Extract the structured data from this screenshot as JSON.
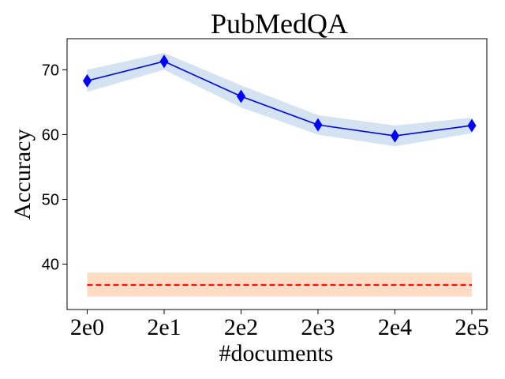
{
  "chart_data": {
    "type": "line",
    "title": "PubMedQA",
    "xlabel": "#documents",
    "ylabel": "Accuracy",
    "categories": [
      "2e0",
      "2e1",
      "2e2",
      "2e3",
      "2e4",
      "2e5"
    ],
    "ylim": [
      33,
      74.8
    ],
    "yticks": [
      40,
      50,
      60,
      70
    ],
    "grid": false,
    "series": [
      {
        "values": [
          68.3,
          71.3,
          65.9,
          61.5,
          59.8,
          61.4
        ],
        "lower": [
          66.6,
          70.0,
          64.2,
          60.0,
          58.2,
          60.2
        ],
        "upper": [
          70.0,
          72.6,
          67.6,
          63.0,
          61.4,
          62.6
        ],
        "line_color": "#0000ff",
        "band_color": "#b5d0e8",
        "marker": "diamond"
      }
    ],
    "reference": {
      "value": 36.8,
      "lower": 35.0,
      "upper": 38.7,
      "line_color": "#ff0000",
      "band_color": "#ffdcc4",
      "style": "dashed"
    }
  }
}
